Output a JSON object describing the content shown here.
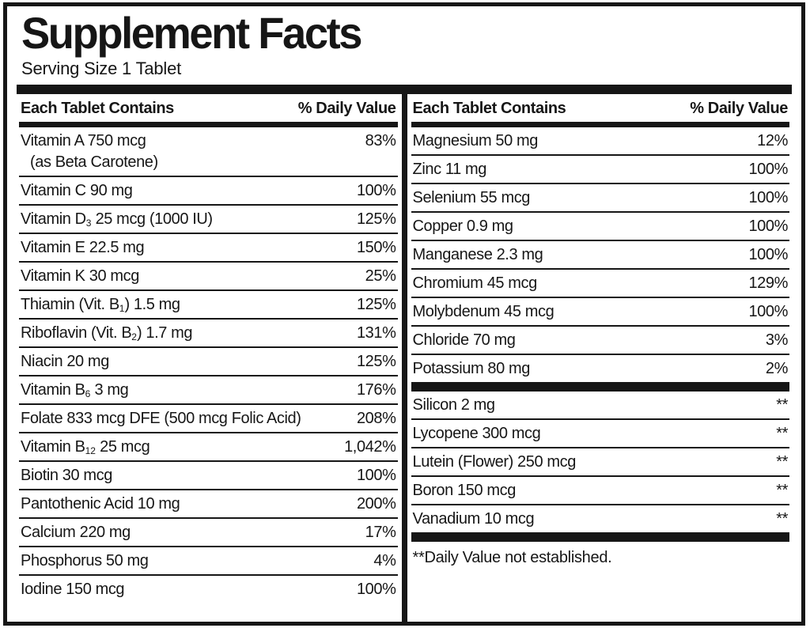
{
  "label": {
    "title": "Supplement Facts",
    "serving_size": "Serving Size 1 Tablet"
  },
  "ink_color": "#161616",
  "background_color": "#ffffff",
  "footnote": "**Daily Value not established.",
  "columns": [
    {
      "side": "left",
      "header_left": "Each Tablet Contains",
      "header_right": "% Daily Value",
      "groups": [
        {
          "bar_after": false,
          "rows": [
            {
              "name": "Vitamin A 750 mcg",
              "name2": "(as Beta Carotene)",
              "dv": "83%"
            },
            {
              "name": "Vitamin C 90 mg",
              "dv": "100%"
            },
            {
              "name": "Vitamin D~3~ 25 mcg (1000 IU)",
              "dv": "125%"
            },
            {
              "name": "Vitamin E 22.5 mg",
              "dv": "150%"
            },
            {
              "name": "Vitamin K 30 mcg",
              "dv": "25%"
            },
            {
              "name": "Thiamin (Vit. B~1~) 1.5 mg",
              "dv": "125%"
            },
            {
              "name": "Riboflavin (Vit. B~2~) 1.7 mg",
              "dv": "131%"
            },
            {
              "name": "Niacin 20 mg",
              "dv": "125%"
            },
            {
              "name": "Vitamin B~6~ 3 mg",
              "dv": "176%"
            },
            {
              "name": "Folate 833 mcg DFE (500 mcg Folic Acid)",
              "dv": "208%"
            },
            {
              "name": "Vitamin B~12~ 25 mcg",
              "dv": "1,042%"
            },
            {
              "name": "Biotin 30 mcg",
              "dv": "100%"
            },
            {
              "name": "Pantothenic Acid 10 mg",
              "dv": "200%"
            },
            {
              "name": "Calcium 220 mg",
              "dv": "17%"
            },
            {
              "name": "Phosphorus 50 mg",
              "dv": "4%"
            },
            {
              "name": "Iodine 150 mcg",
              "dv": "100%"
            }
          ]
        }
      ],
      "footnote": null
    },
    {
      "side": "right",
      "header_left": "Each Tablet Contains",
      "header_right": "% Daily Value",
      "groups": [
        {
          "bar_after": true,
          "rows": [
            {
              "name": "Magnesium 50 mg",
              "dv": "12%"
            },
            {
              "name": "Zinc 11 mg",
              "dv": "100%"
            },
            {
              "name": "Selenium 55 mcg",
              "dv": "100%"
            },
            {
              "name": "Copper 0.9 mg",
              "dv": "100%"
            },
            {
              "name": "Manganese 2.3 mg",
              "dv": "100%"
            },
            {
              "name": "Chromium 45 mcg",
              "dv": "129%"
            },
            {
              "name": "Molybdenum 45 mcg",
              "dv": "100%"
            },
            {
              "name": "Chloride 70 mg",
              "dv": "3%"
            },
            {
              "name": "Potassium 80 mg",
              "dv": "2%"
            }
          ]
        },
        {
          "bar_after": true,
          "rows": [
            {
              "name": "Silicon 2 mg",
              "dv": "**"
            },
            {
              "name": "Lycopene 300 mcg",
              "dv": "**"
            },
            {
              "name": "Lutein (Flower) 250 mcg",
              "dv": "**"
            },
            {
              "name": "Boron 150 mcg",
              "dv": "**"
            },
            {
              "name": "Vanadium 10 mcg",
              "dv": "**"
            }
          ]
        }
      ],
      "footnote": "**Daily Value not established."
    }
  ]
}
